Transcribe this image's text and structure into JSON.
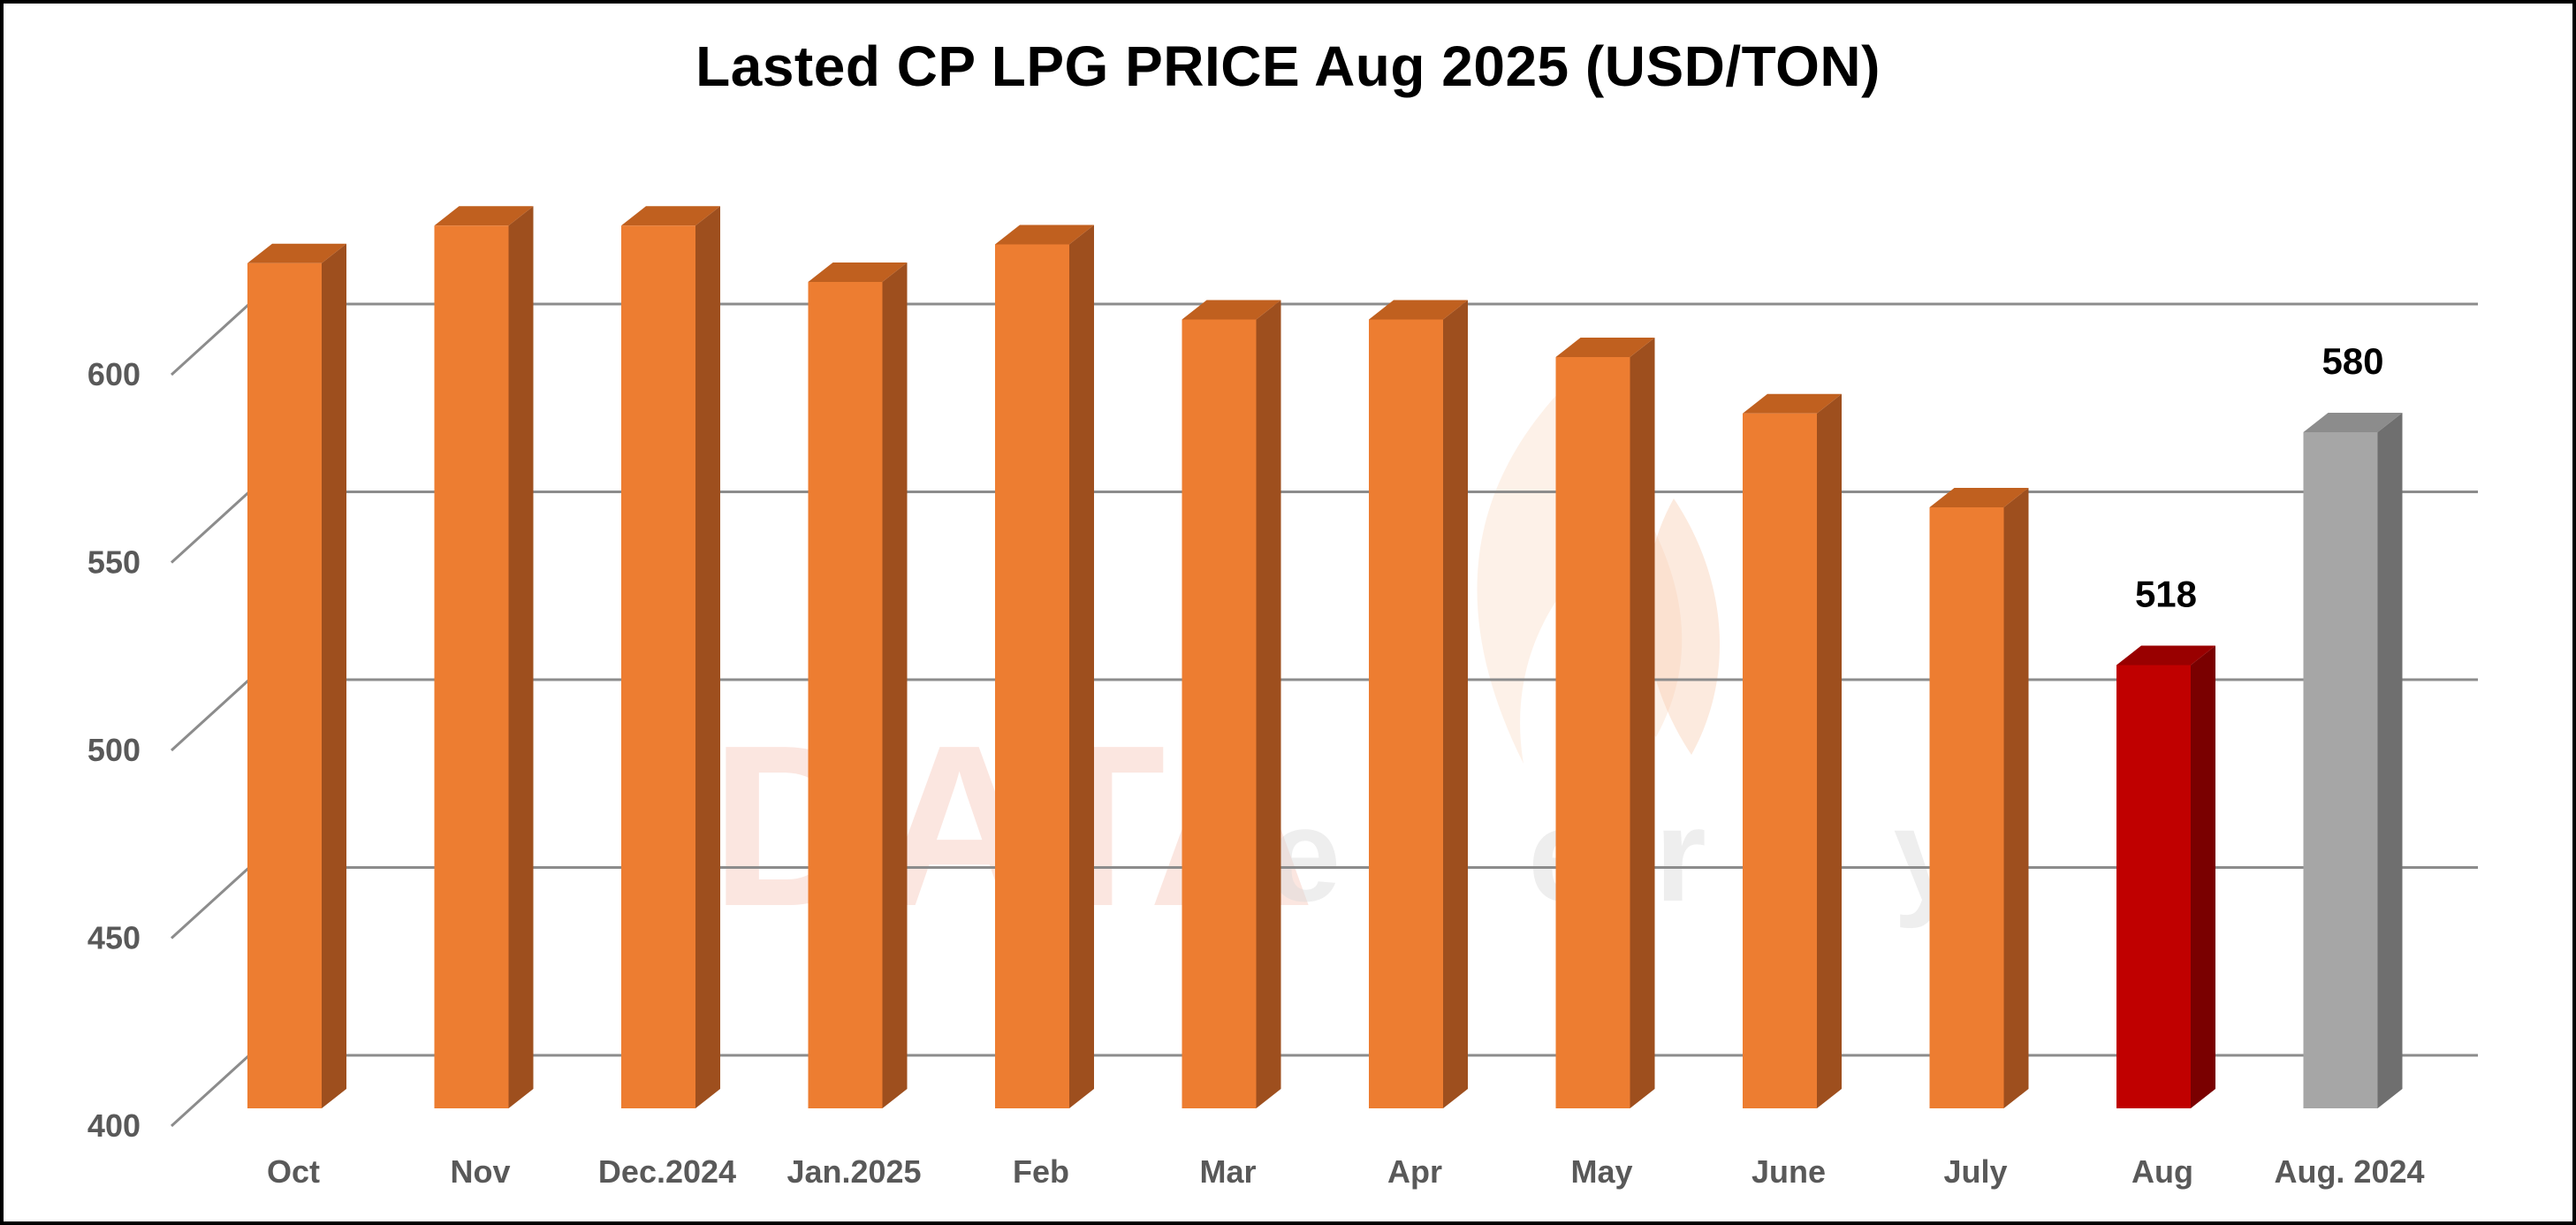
{
  "chart_data": {
    "type": "bar",
    "title": "Lasted CP LPG PRICE Aug 2025 (USD/TON)",
    "xlabel": "",
    "ylabel": "",
    "categories": [
      "Oct",
      "Nov",
      "Dec.2024",
      "Jan.2025",
      "Feb",
      "Mar",
      "Apr",
      "May",
      "June",
      "July",
      "Aug",
      "Aug. 2024"
    ],
    "values": [
      625,
      635,
      635,
      620,
      630,
      610,
      610,
      600,
      585,
      560,
      518,
      580
    ],
    "data_labels": {
      "10": "518",
      "11": "580"
    },
    "yticks": [
      400,
      450,
      500,
      550,
      600
    ],
    "ylim": [
      400,
      640
    ],
    "grid": true,
    "legend": "none",
    "style": "3d-column"
  },
  "colors": {
    "default_bar": "#ED7D31",
    "default_bar_side": "#9E4F1E",
    "default_bar_top": "#C0601F",
    "highlight_bar": "#C00000",
    "highlight_bar_side": "#7A0000",
    "highlight_bar_top": "#990000",
    "comparison_bar": "#A6A6A6",
    "comparison_bar_side": "#6F6F6F",
    "comparison_bar_top": "#8C8C8C",
    "gridline": "#8C8C8C",
    "axis_text": "#595959"
  },
  "bar_styles": [
    "default",
    "default",
    "default",
    "default",
    "default",
    "default",
    "default",
    "default",
    "default",
    "default",
    "highlight",
    "comparison"
  ],
  "watermark": {
    "text_main": "DATA",
    "text_sub": "energy",
    "icon": "flame-icon"
  }
}
